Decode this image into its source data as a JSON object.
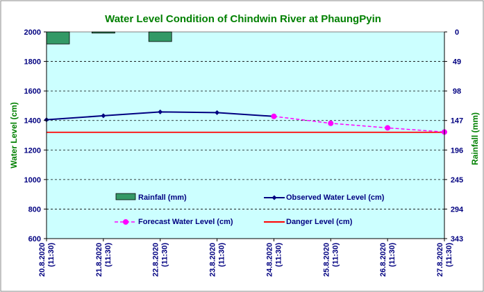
{
  "colors": {
    "plot_bg": "#ccffff",
    "frame": "#888888",
    "title": "#008000",
    "axis_text": "#000080",
    "rainfall_fill": "#339966",
    "observed": "#000080",
    "forecast": "#ff00ff",
    "danger": "#ff0000"
  },
  "chart_data": {
    "type": "bar+line",
    "title": "Water Level Condition of Chindwin River at  PhaungPyin",
    "ylabel_left": "Water Level (cm)",
    "ylabel_right": "Rainfall (mm)",
    "categories": [
      [
        "20.8.2020",
        "(11:30)"
      ],
      [
        "21.8.2020",
        "(11:30)"
      ],
      [
        "22.8.2020",
        "(11:30)"
      ],
      [
        "23.8.2020",
        "(11:30)"
      ],
      [
        "24.8.2020",
        "(11:30)"
      ],
      [
        "25.8.2020",
        "(11:30)"
      ],
      [
        "26.8.2020",
        "(11:30)"
      ],
      [
        "27.8.2020",
        "(11:30)"
      ]
    ],
    "y_left": {
      "min": 600,
      "max": 2000,
      "ticks": [
        600,
        800,
        1000,
        1200,
        1400,
        1600,
        1800,
        2000
      ]
    },
    "y_right": {
      "min": 0,
      "max": 343,
      "reversed": true,
      "ticks": [
        0,
        49,
        98,
        147,
        196,
        245,
        294,
        343
      ]
    },
    "grid": "horizontal-dashed",
    "rainfall": {
      "name": "Rainfall (mm)",
      "values": [
        20,
        2,
        16,
        0,
        0,
        null,
        null,
        null
      ]
    },
    "observed": {
      "name": "Observed Water Level (cm)",
      "values": [
        1405,
        1432,
        1458,
        1453,
        1428,
        null,
        null,
        null
      ]
    },
    "forecast": {
      "name": "Forecast Water Level (cm)",
      "values": [
        null,
        null,
        null,
        null,
        1428,
        1381,
        1350,
        1322
      ]
    },
    "danger": {
      "name": "Danger Level (cm)",
      "value": 1320
    },
    "legend_placement": "inside-bottom"
  }
}
